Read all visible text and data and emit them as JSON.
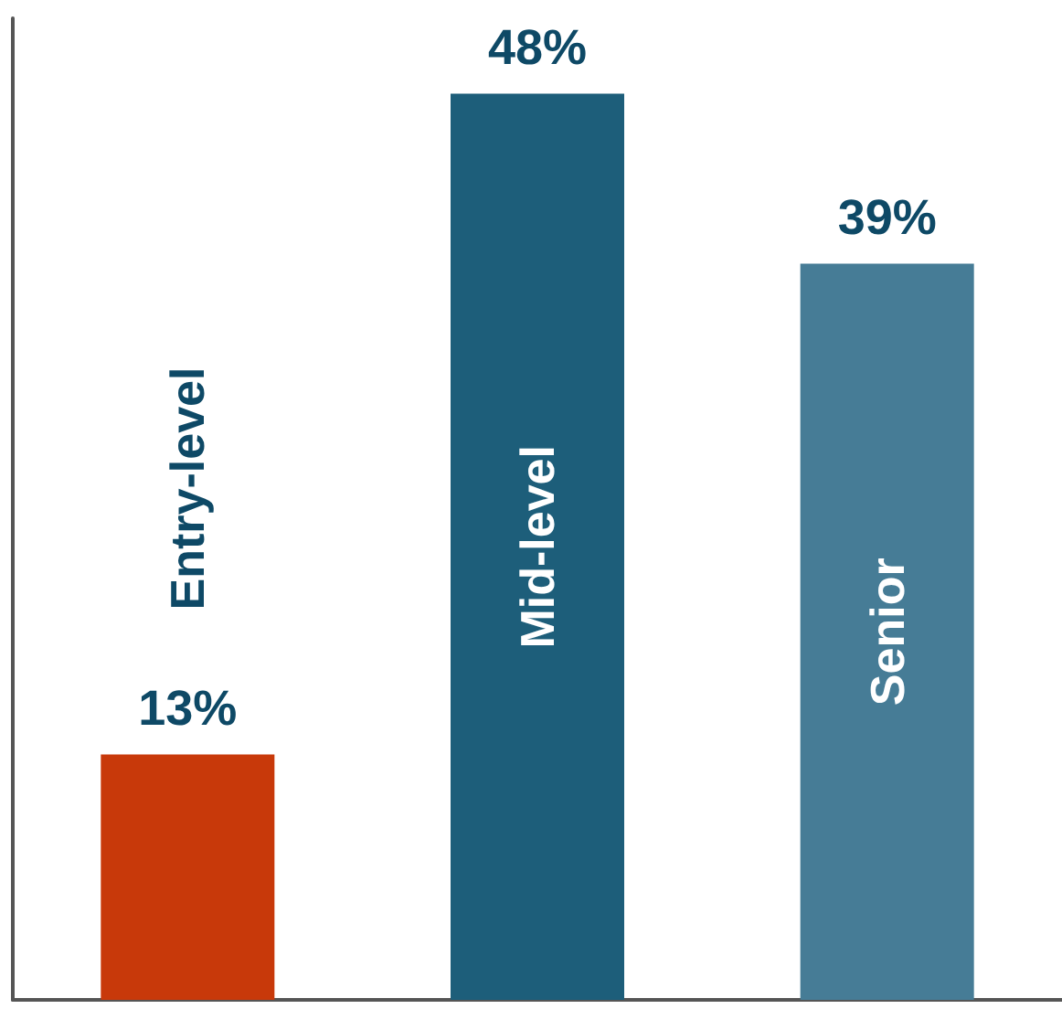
{
  "chart_data": {
    "type": "bar",
    "categories": [
      "Entry-level",
      "Mid-level",
      "Senior"
    ],
    "values": [
      13,
      48,
      39
    ],
    "colors": [
      "#c8390a",
      "#1d5e7a",
      "#467c96"
    ],
    "value_labels": [
      "13%",
      "48%",
      "39%"
    ],
    "ylim": [
      0,
      52
    ],
    "grid": false
  }
}
